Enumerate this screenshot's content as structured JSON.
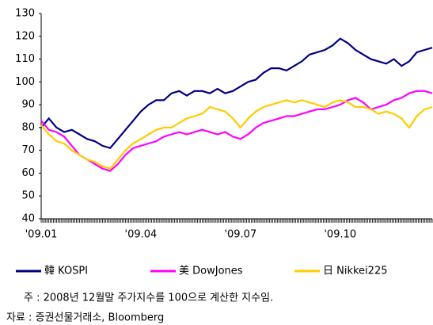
{
  "chart_data": {
    "type": "line",
    "categories": [
      "'09.01",
      null,
      null,
      null,
      null,
      null,
      null,
      null,
      null,
      null,
      null,
      null,
      null,
      "'09.04",
      null,
      null,
      null,
      null,
      null,
      null,
      null,
      null,
      null,
      null,
      null,
      null,
      "'09.07",
      null,
      null,
      null,
      null,
      null,
      null,
      null,
      null,
      null,
      null,
      null,
      null,
      "'09.10",
      null,
      null,
      null,
      null,
      null,
      null,
      null,
      null,
      null,
      null,
      null,
      null
    ],
    "series": [
      {
        "name": "韓 KOSPI",
        "color": "#000080",
        "values": [
          80,
          84,
          80,
          78,
          79,
          77,
          75,
          74,
          72,
          71,
          75,
          79,
          83,
          87,
          90,
          92,
          92,
          95,
          96,
          94,
          96,
          96,
          95,
          97,
          95,
          96,
          98,
          100,
          101,
          104,
          106,
          106,
          105,
          107,
          109,
          112,
          113,
          114,
          116,
          119,
          117,
          114,
          112,
          110,
          109,
          108,
          110,
          107,
          109,
          113,
          114,
          115
        ]
      },
      {
        "name": "美 DowJones",
        "color": "#ff00ff",
        "values": [
          83,
          79,
          78,
          76,
          72,
          68,
          66,
          64,
          62,
          61,
          64,
          68,
          71,
          72,
          73,
          74,
          76,
          77,
          78,
          77,
          78,
          79,
          78,
          77,
          78,
          76,
          75,
          77,
          80,
          82,
          83,
          84,
          85,
          85,
          86,
          87,
          88,
          88,
          89,
          90,
          92,
          93,
          91,
          88,
          89,
          90,
          92,
          93,
          95,
          96,
          96,
          95
        ]
      },
      {
        "name": "日 Nikkei225",
        "color": "#ffcc00",
        "values": [
          81,
          77,
          74,
          73,
          70,
          68,
          66,
          65,
          63,
          62,
          66,
          70,
          73,
          75,
          77,
          79,
          80,
          80,
          82,
          84,
          85,
          86,
          89,
          88,
          87,
          84,
          80,
          84,
          87,
          89,
          90,
          91,
          92,
          91,
          92,
          91,
          90,
          89,
          91,
          92,
          91,
          89,
          89,
          88,
          86,
          87,
          86,
          84,
          80,
          85,
          88,
          89
        ]
      }
    ],
    "ylim": [
      40,
      130
    ],
    "yticks": [
      40,
      50,
      60,
      70,
      80,
      90,
      100,
      110,
      120,
      130
    ],
    "grid": false,
    "legend": "bottom",
    "notes": [
      "주 : 2008년 12월말 주가지수를 100으로 계산한 지수임.",
      "자료 : 증권선물거래소, Bloomberg"
    ]
  }
}
